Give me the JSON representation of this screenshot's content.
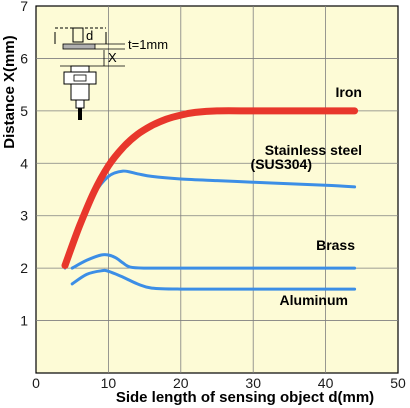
{
  "chart_data": {
    "type": "line",
    "title": "",
    "xlabel": "Side length of sensing object d(mm)",
    "ylabel": "Distance X(mm)",
    "xlim": [
      0,
      50
    ],
    "ylim": [
      0,
      7
    ],
    "xticks": [
      0,
      10,
      20,
      30,
      40,
      50
    ],
    "yticks": [
      1,
      2,
      3,
      4,
      5,
      6,
      7
    ],
    "grid": true,
    "legend": "labels placed next to each curve",
    "inset_diagram": {
      "side_label": "d",
      "thickness_label": "t=1mm",
      "distance_label": "X"
    },
    "series": [
      {
        "name": "Iron",
        "color": "#e8372c",
        "x": [
          4,
          6,
          8,
          10,
          12,
          14,
          16,
          18,
          20,
          22,
          25,
          30,
          35,
          40,
          44
        ],
        "y": [
          2.05,
          2.8,
          3.45,
          3.95,
          4.3,
          4.55,
          4.72,
          4.84,
          4.92,
          4.97,
          5.0,
          5.0,
          5.0,
          5.0,
          5.0
        ],
        "label": "Iron"
      },
      {
        "name": "Stainless steel (SUS304)",
        "color": "#3c8ee6",
        "x": [
          4,
          6,
          8,
          10,
          12,
          14,
          16,
          20,
          25,
          30,
          35,
          40,
          44
        ],
        "y": [
          2.0,
          2.75,
          3.4,
          3.75,
          3.85,
          3.8,
          3.75,
          3.7,
          3.67,
          3.64,
          3.61,
          3.58,
          3.55
        ],
        "label_lines": [
          "Stainless steel",
          "(SUS304)"
        ]
      },
      {
        "name": "Brass",
        "color": "#3c8ee6",
        "x": [
          5,
          7,
          9,
          10,
          11,
          12,
          13,
          15,
          20,
          30,
          44
        ],
        "y": [
          2.0,
          2.15,
          2.25,
          2.25,
          2.2,
          2.1,
          2.02,
          2.0,
          2.0,
          2.0,
          2.0
        ],
        "label": "Brass"
      },
      {
        "name": "Aluminum",
        "color": "#3c8ee6",
        "x": [
          5,
          7,
          9,
          10,
          12,
          14,
          16,
          20,
          30,
          44
        ],
        "y": [
          1.7,
          1.88,
          1.95,
          1.94,
          1.83,
          1.7,
          1.62,
          1.6,
          1.6,
          1.6
        ],
        "label": "Aluminum"
      }
    ]
  }
}
